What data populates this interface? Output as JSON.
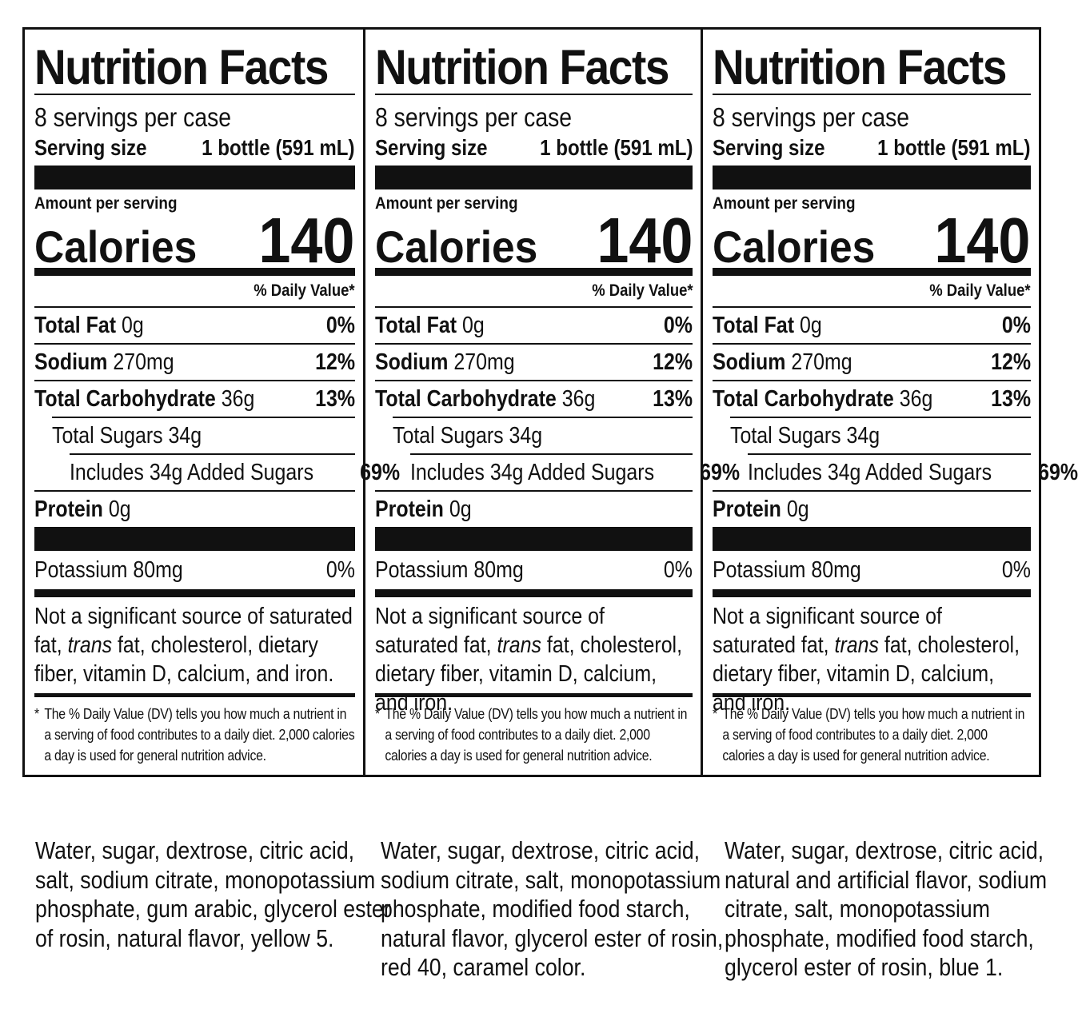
{
  "panels": [
    {
      "title": "Nutrition Facts",
      "servings": "8 servings per case",
      "serving_size_label": "Serving size",
      "serving_size_value": "1 bottle (591 mL)",
      "amount_per_serving": "Amount per serving",
      "calories_label": "Calories",
      "calories_value": "140",
      "dv_header": "% Daily Value*",
      "total_fat_label": "Total Fat",
      "total_fat_amount": "0g",
      "total_fat_dv": "0%",
      "sodium_label": "Sodium",
      "sodium_amount": "270mg",
      "sodium_dv": "12%",
      "carb_label": "Total Carbohydrate",
      "carb_amount": "36g",
      "carb_dv": "13%",
      "sugars": "Total Sugars 34g",
      "added_sugars": "Includes 34g Added Sugars",
      "added_sugars_dv": "69%",
      "protein_label": "Protein",
      "protein_amount": "0g",
      "potassium": "Potassium 80mg",
      "potassium_dv": "0%",
      "note_start": "Not a significant source of saturated fat,",
      "note_trans": "trans",
      "note_end": "fat, cholesterol, dietary fiber, vitamin D, calcium, and iron.",
      "footnote": "The % Daily Value (DV) tells you how much a nutrient in a serving of food contributes to a daily diet. 2,000 calories a day is used for general nutrition advice."
    },
    {
      "title": "Nutrition Facts",
      "servings": "8 servings per case",
      "serving_size_label": "Serving size",
      "serving_size_value": "1 bottle (591 mL)",
      "amount_per_serving": "Amount per serving",
      "calories_label": "Calories",
      "calories_value": "140",
      "dv_header": "% Daily Value*",
      "total_fat_label": "Total Fat",
      "total_fat_amount": "0g",
      "total_fat_dv": "0%",
      "sodium_label": "Sodium",
      "sodium_amount": "270mg",
      "sodium_dv": "12%",
      "carb_label": "Total Carbohydrate",
      "carb_amount": "36g",
      "carb_dv": "13%",
      "sugars": "Total Sugars 34g",
      "added_sugars": "Includes 34g Added Sugars",
      "added_sugars_dv": "69%",
      "protein_label": "Protein",
      "protein_amount": "0g",
      "potassium": "Potassium 80mg",
      "potassium_dv": "0%",
      "note_start": "Not a significant source of saturated fat,",
      "note_trans": "trans",
      "note_end": "fat, cholesterol, dietary fiber, vitamin D, calcium, and iron.",
      "footnote": "The % Daily Value (DV) tells you how much a nutrient in a serving of food contributes to a daily diet. 2,000 calories a day is used for general nutrition advice."
    },
    {
      "title": "Nutrition Facts",
      "servings": "8 servings per case",
      "serving_size_label": "Serving size",
      "serving_size_value": "1 bottle (591 mL)",
      "amount_per_serving": "Amount per serving",
      "calories_label": "Calories",
      "calories_value": "140",
      "dv_header": "% Daily Value*",
      "total_fat_label": "Total Fat",
      "total_fat_amount": "0g",
      "total_fat_dv": "0%",
      "sodium_label": "Sodium",
      "sodium_amount": "270mg",
      "sodium_dv": "12%",
      "carb_label": "Total Carbohydrate",
      "carb_amount": "36g",
      "carb_dv": "13%",
      "sugars": "Total Sugars 34g",
      "added_sugars": "Includes 34g Added Sugars",
      "added_sugars_dv": "69%",
      "protein_label": "Protein",
      "protein_amount": "0g",
      "potassium": "Potassium 80mg",
      "potassium_dv": "0%",
      "note_start": "Not a significant source of saturated fat,",
      "note_trans": "trans",
      "note_end": "fat, cholesterol, dietary fiber, vitamin D, calcium, and iron.",
      "footnote": "The % Daily Value (DV) tells you how much a nutrient in a serving of food contributes to a daily diet. 2,000 calories a day is used for general nutrition advice."
    }
  ],
  "footnote_star": "*",
  "ingredients": [
    {
      "lines": [
        "Water, sugar, dextrose, citric acid,",
        "salt, sodium citrate, monopotassium",
        "phosphate, gum arabic, glycerol ester",
        "of rosin, natural flavor, yellow 5."
      ]
    },
    {
      "lines": [
        "Water, sugar, dextrose, citric acid,",
        "sodium citrate, salt, monopotassium",
        "phosphate, modified food starch,",
        "natural flavor, glycerol ester of rosin,",
        "red 40, caramel color."
      ]
    },
    {
      "lines": [
        "Water, sugar, dextrose, citric acid,",
        "natural and artificial flavor, sodium",
        "citrate, salt, monopotassium",
        "phosphate, modified food starch,",
        "glycerol ester of rosin, blue 1."
      ]
    }
  ]
}
